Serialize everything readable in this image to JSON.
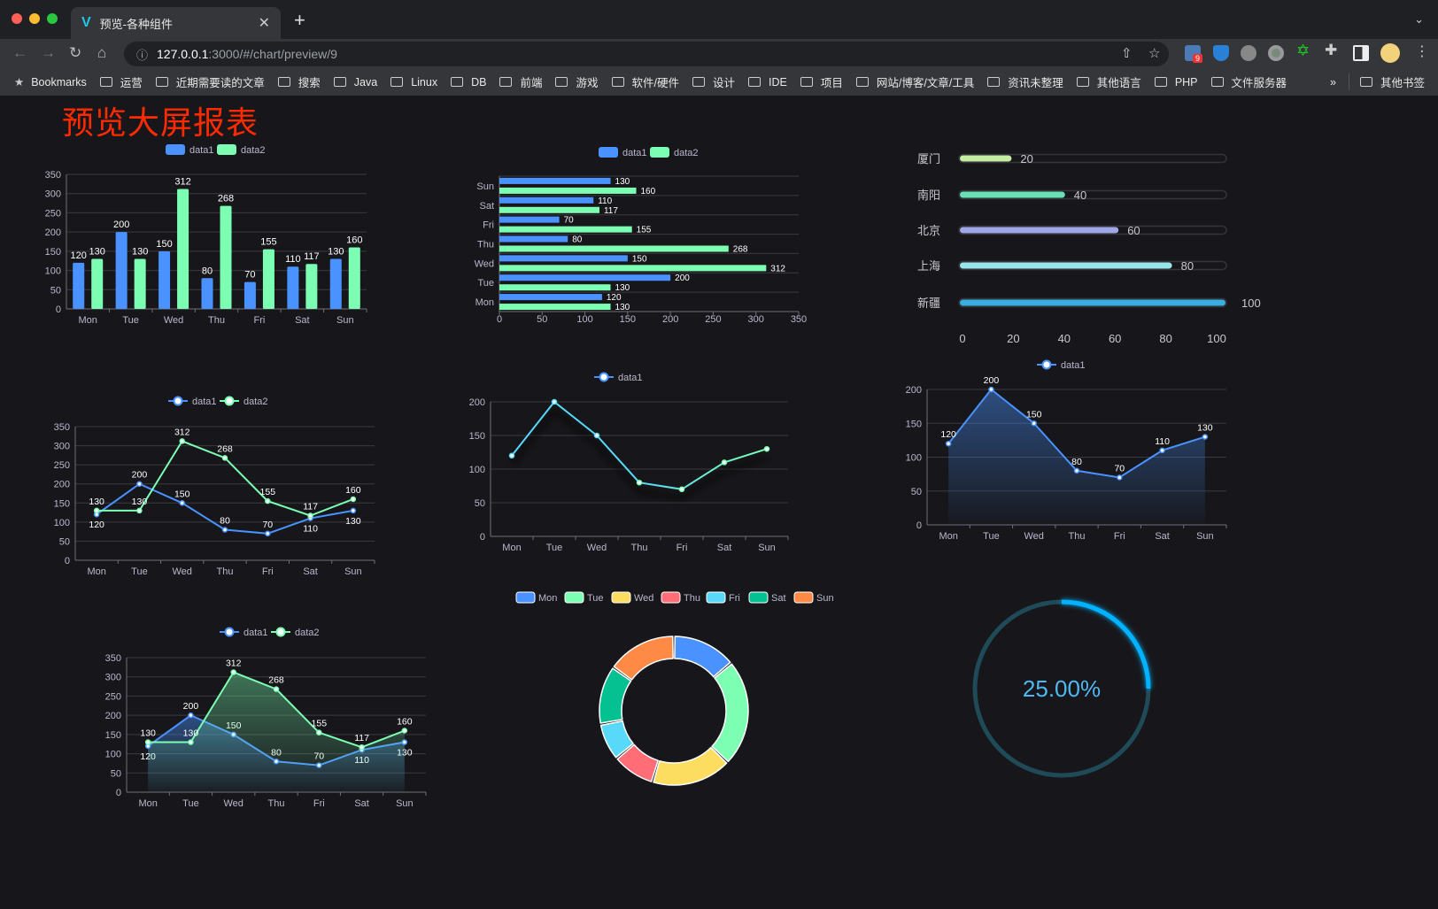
{
  "browser": {
    "tab_title": "预览-各种组件",
    "url_host": "127.0.0.1",
    "url_rest": ":3000/#/chart/preview/9",
    "extension_badge": "9",
    "bookmarks_label": "Bookmarks",
    "bookmark_folders": [
      "运营",
      "近期需要读的文章",
      "搜索",
      "Java",
      "Linux",
      "DB",
      "前端",
      "游戏",
      "软件/硬件",
      "设计",
      "IDE",
      "项目",
      "网站/博客/文章/工具",
      "资讯未整理",
      "其他语言",
      "PHP",
      "文件服务器"
    ],
    "more_label": "»",
    "other_bookmarks": "其他书签"
  },
  "page": {
    "title": "预览大屏报表"
  },
  "colors": {
    "blue": "#4992ff",
    "green": "#7cffb2",
    "yellow": "#fddd60",
    "red": "#ff6e76",
    "cyan": "#58d9f9",
    "teal": "#05c091",
    "orange": "#ff8a45",
    "title": "#ff2a00",
    "gauge": "#00b2ff"
  },
  "chart_data": [
    {
      "type": "bar",
      "categories": [
        "Mon",
        "Tue",
        "Wed",
        "Thu",
        "Fri",
        "Sat",
        "Sun"
      ],
      "ylim": [
        0,
        350
      ],
      "yticks": [
        "0",
        "50",
        "100",
        "150",
        "200",
        "250",
        "300",
        "350"
      ],
      "legend": "top",
      "grid": true,
      "series": [
        {
          "name": "data1",
          "values": [
            120,
            200,
            150,
            80,
            70,
            110,
            130
          ]
        },
        {
          "name": "data2",
          "values": [
            130,
            130,
            312,
            268,
            155,
            117,
            160
          ]
        }
      ]
    },
    {
      "type": "bar",
      "orientation": "horizontal",
      "categories": [
        "Mon",
        "Tue",
        "Wed",
        "Thu",
        "Fri",
        "Sat",
        "Sun"
      ],
      "xlim": [
        0,
        350
      ],
      "xticks": [
        "0",
        "50",
        "100",
        "150",
        "200",
        "250",
        "300",
        "350"
      ],
      "legend": "top",
      "grid": true,
      "series": [
        {
          "name": "data1",
          "values": [
            120,
            200,
            150,
            80,
            70,
            110,
            130
          ]
        },
        {
          "name": "data2",
          "values": [
            130,
            130,
            312,
            268,
            155,
            117,
            160
          ]
        }
      ]
    },
    {
      "type": "bar",
      "orientation": "horizontal",
      "subtype": "progress",
      "categories": [
        "厦门",
        "南阳",
        "北京",
        "上海",
        "新疆"
      ],
      "values": [
        20,
        40,
        60,
        80,
        100
      ],
      "xlim": [
        0,
        100
      ],
      "xticks": [
        "0",
        "20",
        "40",
        "60",
        "80",
        "100"
      ],
      "colors": [
        "#c6eea0",
        "#67e0b3",
        "#a0a7e6",
        "#96e6ec",
        "#3aaee0"
      ]
    },
    {
      "type": "line",
      "categories": [
        "Mon",
        "Tue",
        "Wed",
        "Thu",
        "Fri",
        "Sat",
        "Sun"
      ],
      "ylim": [
        0,
        350
      ],
      "yticks": [
        "0",
        "50",
        "100",
        "150",
        "200",
        "250",
        "300",
        "350"
      ],
      "legend": "top",
      "grid": true,
      "series": [
        {
          "name": "data1",
          "values": [
            120,
            200,
            150,
            80,
            70,
            110,
            130
          ]
        },
        {
          "name": "data2",
          "values": [
            130,
            130,
            312,
            268,
            155,
            117,
            160
          ]
        }
      ]
    },
    {
      "type": "line",
      "categories": [
        "Mon",
        "Tue",
        "Wed",
        "Thu",
        "Fri",
        "Sat",
        "Sun"
      ],
      "ylim": [
        0,
        200
      ],
      "yticks": [
        "0",
        "50",
        "100",
        "150",
        "200"
      ],
      "legend": "top",
      "grid": true,
      "series": [
        {
          "name": "data1",
          "values": [
            120,
            200,
            150,
            80,
            70,
            110,
            130
          ]
        }
      ]
    },
    {
      "type": "area",
      "categories": [
        "Mon",
        "Tue",
        "Wed",
        "Thu",
        "Fri",
        "Sat",
        "Sun"
      ],
      "ylim": [
        0,
        200
      ],
      "yticks": [
        "0",
        "50",
        "100",
        "150",
        "200"
      ],
      "legend": "top",
      "grid": true,
      "series": [
        {
          "name": "data1",
          "values": [
            120,
            200,
            150,
            80,
            70,
            110,
            130
          ]
        }
      ]
    },
    {
      "type": "area",
      "categories": [
        "Mon",
        "Tue",
        "Wed",
        "Thu",
        "Fri",
        "Sat",
        "Sun"
      ],
      "ylim": [
        0,
        350
      ],
      "yticks": [
        "0",
        "50",
        "100",
        "150",
        "200",
        "250",
        "300",
        "350"
      ],
      "legend": "top",
      "grid": true,
      "series": [
        {
          "name": "data1",
          "values": [
            120,
            200,
            150,
            80,
            70,
            110,
            130
          ]
        },
        {
          "name": "data2",
          "values": [
            130,
            130,
            312,
            268,
            155,
            117,
            160
          ]
        }
      ]
    },
    {
      "type": "pie",
      "subtype": "donut",
      "legend": "top",
      "categories": [
        "Mon",
        "Tue",
        "Wed",
        "Thu",
        "Fri",
        "Sat",
        "Sun"
      ],
      "values": [
        120,
        200,
        150,
        80,
        70,
        110,
        130
      ]
    },
    {
      "type": "gauge",
      "value": 0.25,
      "label": "25.00%"
    }
  ]
}
